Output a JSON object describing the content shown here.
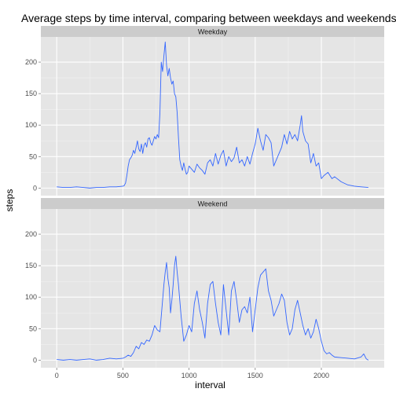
{
  "chart_data": {
    "type": "line",
    "title": "Average steps by time interval, comparing between weekdays and weekends",
    "xlabel": "interval",
    "ylabel": "steps",
    "xlim": [
      -120,
      2475
    ],
    "ylim": [
      -12,
      240
    ],
    "x_ticks": [
      0,
      500,
      1000,
      1500,
      2000
    ],
    "y_ticks": [
      0,
      50,
      100,
      150,
      200
    ],
    "grid": true,
    "line_color": "#3366FF",
    "panel_color": "#E5E5E5",
    "strip_color": "#CCCCCC",
    "series": [
      {
        "name": "Weekday",
        "x": [
          0,
          50,
          100,
          150,
          200,
          250,
          300,
          350,
          400,
          450,
          500,
          510,
          520,
          530,
          540,
          550,
          560,
          570,
          580,
          590,
          600,
          610,
          620,
          630,
          640,
          650,
          660,
          670,
          680,
          690,
          700,
          710,
          720,
          730,
          740,
          750,
          760,
          770,
          780,
          790,
          800,
          810,
          820,
          830,
          840,
          850,
          860,
          870,
          880,
          890,
          900,
          910,
          920,
          930,
          940,
          950,
          960,
          970,
          980,
          990,
          1000,
          1020,
          1040,
          1060,
          1080,
          1100,
          1120,
          1140,
          1160,
          1180,
          1200,
          1220,
          1240,
          1260,
          1280,
          1300,
          1320,
          1340,
          1360,
          1380,
          1400,
          1420,
          1440,
          1460,
          1480,
          1500,
          1520,
          1540,
          1560,
          1580,
          1600,
          1620,
          1640,
          1660,
          1680,
          1700,
          1720,
          1740,
          1760,
          1780,
          1800,
          1820,
          1840,
          1850,
          1860,
          1880,
          1900,
          1920,
          1940,
          1960,
          1980,
          2000,
          2020,
          2050,
          2080,
          2100,
          2150,
          2200,
          2250,
          2300,
          2355
        ],
        "values": [
          2,
          1,
          1,
          2,
          1,
          0,
          1,
          1,
          2,
          2,
          3,
          4,
          8,
          20,
          35,
          45,
          48,
          52,
          60,
          55,
          65,
          75,
          62,
          58,
          70,
          55,
          68,
          72,
          65,
          78,
          80,
          72,
          68,
          75,
          82,
          78,
          85,
          80,
          120,
          200,
          185,
          210,
          232,
          195,
          178,
          190,
          175,
          165,
          170,
          150,
          145,
          120,
          80,
          45,
          35,
          28,
          40,
          30,
          22,
          25,
          35,
          30,
          25,
          38,
          32,
          28,
          22,
          40,
          45,
          35,
          55,
          38,
          52,
          60,
          35,
          50,
          42,
          48,
          65,
          40,
          45,
          35,
          50,
          38,
          55,
          70,
          95,
          75,
          60,
          85,
          80,
          72,
          35,
          45,
          55,
          65,
          85,
          70,
          90,
          78,
          85,
          75,
          100,
          115,
          90,
          75,
          70,
          40,
          55,
          35,
          40,
          15,
          20,
          25,
          15,
          18,
          10,
          5,
          3,
          2,
          1
        ]
      },
      {
        "name": "Weekend",
        "x": [
          0,
          50,
          100,
          150,
          200,
          250,
          300,
          350,
          400,
          450,
          500,
          520,
          540,
          560,
          580,
          600,
          620,
          640,
          660,
          680,
          700,
          720,
          740,
          760,
          780,
          800,
          810,
          820,
          830,
          840,
          850,
          860,
          870,
          880,
          890,
          900,
          910,
          920,
          940,
          960,
          980,
          1000,
          1020,
          1040,
          1060,
          1080,
          1100,
          1120,
          1140,
          1160,
          1180,
          1200,
          1220,
          1240,
          1260,
          1280,
          1300,
          1320,
          1340,
          1360,
          1380,
          1400,
          1420,
          1440,
          1460,
          1480,
          1500,
          1520,
          1540,
          1560,
          1580,
          1600,
          1620,
          1640,
          1660,
          1680,
          1700,
          1720,
          1740,
          1760,
          1780,
          1800,
          1820,
          1840,
          1860,
          1880,
          1900,
          1920,
          1940,
          1960,
          1980,
          2000,
          2020,
          2040,
          2060,
          2080,
          2100,
          2150,
          2200,
          2250,
          2300,
          2320,
          2340,
          2355
        ],
        "values": [
          1,
          0,
          1,
          0,
          1,
          2,
          0,
          1,
          3,
          2,
          3,
          5,
          8,
          6,
          12,
          22,
          18,
          28,
          25,
          32,
          30,
          40,
          55,
          48,
          45,
          95,
          120,
          140,
          155,
          130,
          115,
          75,
          95,
          120,
          150,
          165,
          140,
          120,
          70,
          30,
          40,
          55,
          45,
          90,
          110,
          80,
          60,
          35,
          90,
          120,
          125,
          90,
          60,
          40,
          120,
          80,
          40,
          110,
          125,
          95,
          60,
          80,
          85,
          75,
          100,
          45,
          80,
          115,
          135,
          140,
          145,
          110,
          95,
          70,
          80,
          90,
          105,
          95,
          60,
          40,
          50,
          80,
          95,
          75,
          55,
          40,
          50,
          35,
          45,
          65,
          50,
          30,
          15,
          10,
          12,
          8,
          5,
          4,
          3,
          2,
          5,
          10,
          2,
          0
        ]
      }
    ]
  }
}
